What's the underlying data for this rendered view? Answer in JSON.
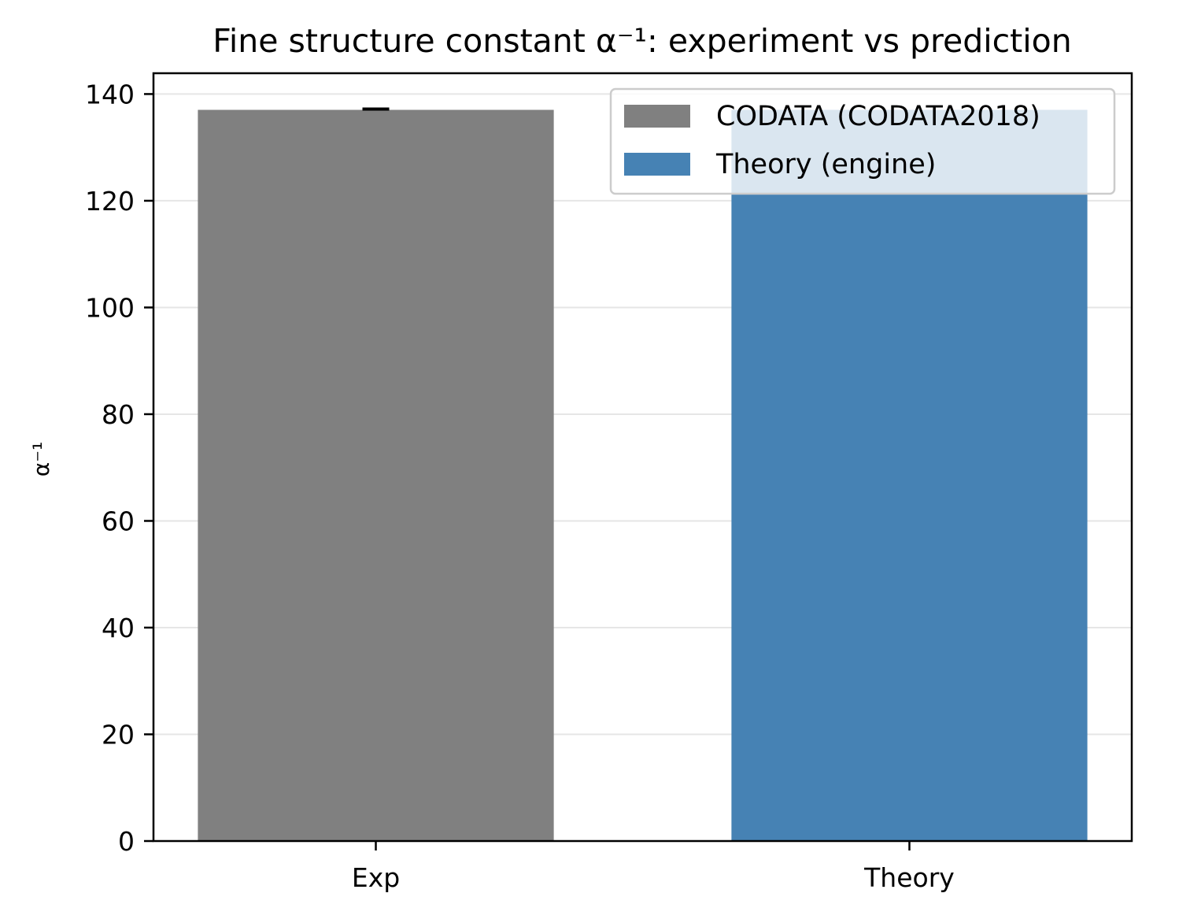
{
  "chart_data": {
    "type": "bar",
    "title": "Fine structure constant α⁻¹: experiment vs prediction",
    "xlabel": "",
    "ylabel": "α⁻¹",
    "categories": [
      "Exp",
      "Theory"
    ],
    "values": [
      137.035999,
      137.036
    ],
    "colors": [
      "#808080",
      "#4682b4"
    ],
    "error": {
      "category": "Exp",
      "value": 2.1e-08
    },
    "legend": {
      "placement": "top-right",
      "entries": [
        {
          "label": "CODATA (CODATA2018)",
          "color": "#808080"
        },
        {
          "label": "Theory (engine)",
          "color": "#4682b4"
        }
      ]
    },
    "ylim": [
      0,
      143.9
    ],
    "yticks": [
      0,
      20,
      40,
      60,
      80,
      100,
      120,
      140
    ],
    "grid": {
      "y": true,
      "x": false
    }
  }
}
